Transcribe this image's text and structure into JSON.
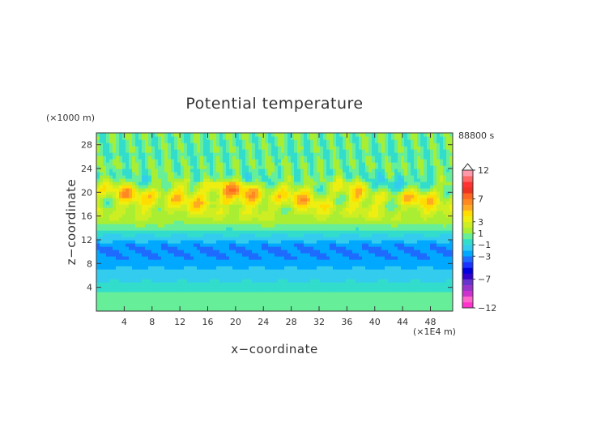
{
  "chart_data": {
    "type": "heatmap",
    "title": "Potential temperature",
    "xlabel": "x−coordinate",
    "ylabel": "z−coordinate",
    "x_unit": "(×1E4 m)",
    "y_unit": "(×1000 m)",
    "time_label": "88800 s",
    "xlim": [
      0,
      51.2
    ],
    "ylim": [
      0,
      30
    ],
    "x_ticks": [
      4,
      8,
      12,
      16,
      20,
      24,
      28,
      32,
      36,
      40,
      44,
      48
    ],
    "y_ticks": [
      4,
      8,
      12,
      16,
      20,
      24,
      28
    ],
    "colorbar": {
      "boundaries": [
        -12,
        -11,
        -10,
        -9,
        -8,
        -7,
        -6,
        -5,
        -4,
        -3,
        -2,
        -1,
        0,
        1,
        2,
        3,
        4,
        5,
        6,
        7,
        8,
        9,
        10,
        11,
        12
      ],
      "labels": [
        "12",
        "7",
        "3",
        "1",
        "−1",
        "−3",
        "−7",
        "−12"
      ],
      "label_values": [
        12,
        7,
        3,
        1,
        -1,
        -3,
        -7,
        -12
      ],
      "extend": "max",
      "colors": [
        "#ff33cc",
        "#ff66cc",
        "#cc33cc",
        "#9933cc",
        "#6633cc",
        "#3300cc",
        "#0000dd",
        "#1a33ff",
        "#1e6bff",
        "#00a8ff",
        "#33ccee",
        "#33ddcc",
        "#66ee99",
        "#aaee33",
        "#ccee22",
        "#eeee11",
        "#ffdd00",
        "#ffaa22",
        "#ff8822",
        "#ff6622",
        "#ee3322",
        "#ff3333",
        "#ff6666",
        "#ff99aa",
        "#ffbbcc"
      ]
    },
    "z_levels": [
      {
        "z": 0.5,
        "value": 0.6
      },
      {
        "z": 1.5,
        "value": 0.2
      },
      {
        "z": 2.5,
        "value": 0.3
      },
      {
        "z": 3.5,
        "value": 0.0
      },
      {
        "z": 4.5,
        "value": -0.6
      },
      {
        "z": 5.5,
        "value": -1.2
      },
      {
        "z": 6.5,
        "value": -1.6
      },
      {
        "z": 7.5,
        "value": -2.1
      },
      {
        "z": 8.5,
        "value": -2.6
      },
      {
        "z": 9.5,
        "value": -3.0
      },
      {
        "z": 10.5,
        "value": -3.1
      },
      {
        "z": 11.5,
        "value": -2.4
      },
      {
        "z": 12.5,
        "value": -1.3
      },
      {
        "z": 13.5,
        "value": -0.4
      },
      {
        "z": 14.5,
        "value": 0.9
      },
      {
        "z": 15.5,
        "value": 1.8
      },
      {
        "z": 16.5,
        "value": 2.3
      },
      {
        "z": 17.5,
        "value": 2.6
      },
      {
        "z": 18.5,
        "value": 3.0
      },
      {
        "z": 19.5,
        "value": 3.4
      },
      {
        "z": 20.5,
        "value": 2.9
      },
      {
        "z": 21.5,
        "value": 1.6
      },
      {
        "z": 22.5,
        "value": 0.5
      },
      {
        "z": 23.5,
        "value": 0.3
      },
      {
        "z": 24.5,
        "value": 0.8
      },
      {
        "z": 25.5,
        "value": 0.5
      },
      {
        "z": 26.5,
        "value": 0.1
      },
      {
        "z": 27.5,
        "value": 0.6
      },
      {
        "z": 28.5,
        "value": 0.3
      },
      {
        "z": 29.5,
        "value": 0.7
      }
    ]
  }
}
